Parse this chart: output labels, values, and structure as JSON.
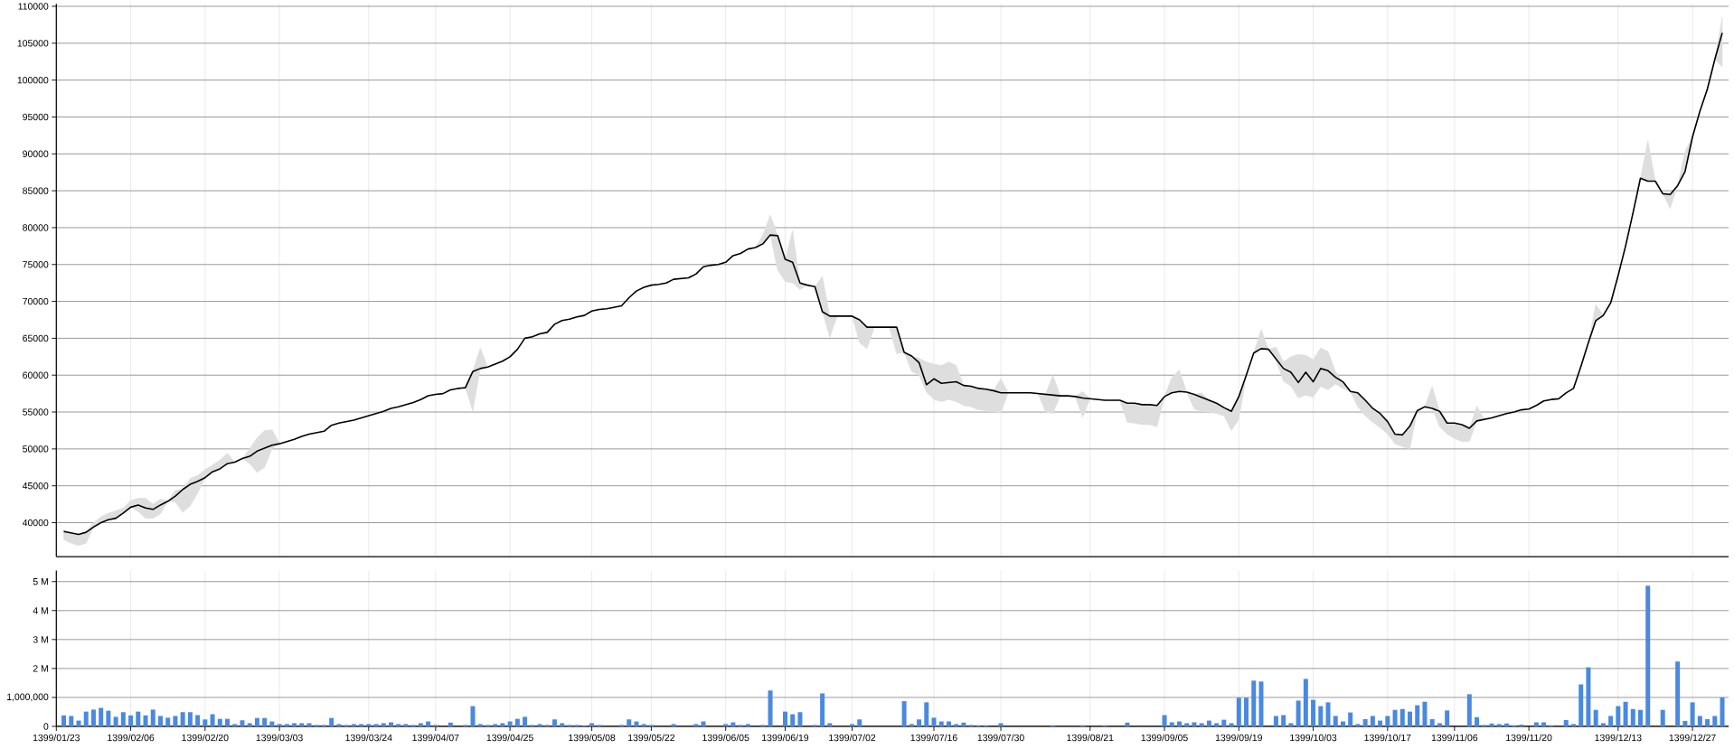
{
  "chart_data": [
    {
      "type": "line",
      "categories": [
        "1399/01/23",
        null,
        null,
        null,
        null,
        null,
        null,
        null,
        null,
        null,
        "1399/02/06",
        null,
        null,
        null,
        null,
        null,
        null,
        null,
        null,
        null,
        "1399/02/20",
        null,
        null,
        null,
        null,
        null,
        null,
        null,
        null,
        null,
        "1399/03/03",
        null,
        null,
        null,
        null,
        null,
        null,
        null,
        null,
        null,
        null,
        null,
        "1399/03/24",
        null,
        null,
        null,
        null,
        null,
        null,
        null,
        null,
        "1399/04/07",
        null,
        null,
        null,
        null,
        null,
        null,
        null,
        null,
        null,
        "1399/04/25",
        null,
        null,
        null,
        null,
        null,
        null,
        null,
        null,
        null,
        null,
        "1399/05/08",
        null,
        null,
        null,
        null,
        null,
        null,
        null,
        "1399/05/22",
        null,
        null,
        null,
        null,
        null,
        null,
        null,
        null,
        null,
        "1399/06/05",
        null,
        null,
        null,
        null,
        null,
        null,
        null,
        "1399/06/19",
        null,
        null,
        null,
        null,
        null,
        null,
        null,
        null,
        "1399/07/02",
        null,
        null,
        null,
        null,
        null,
        null,
        null,
        null,
        null,
        null,
        "1399/07/16",
        null,
        null,
        null,
        null,
        null,
        null,
        null,
        null,
        "1399/07/30",
        null,
        null,
        null,
        null,
        null,
        null,
        null,
        null,
        null,
        null,
        null,
        "1399/08/21",
        null,
        null,
        null,
        null,
        null,
        null,
        null,
        null,
        null,
        "1399/09/05",
        null,
        null,
        null,
        null,
        null,
        null,
        null,
        null,
        null,
        "1399/09/19",
        null,
        null,
        null,
        null,
        null,
        null,
        null,
        null,
        null,
        "1399/10/03",
        null,
        null,
        null,
        null,
        null,
        null,
        null,
        null,
        null,
        "1399/10/17",
        null,
        null,
        null,
        null,
        null,
        null,
        null,
        null,
        "1399/11/06",
        null,
        null,
        null,
        null,
        null,
        null,
        null,
        null,
        null,
        "1399/11/20",
        null,
        null,
        null,
        null,
        null,
        null,
        null,
        null,
        null,
        null,
        null,
        "1399/12/13",
        null,
        null,
        null,
        null,
        null,
        null,
        null,
        null,
        null,
        "1399/12/27",
        null,
        null,
        null,
        null
      ],
      "series": [
        {
          "color": "#000000",
          "values": [
            null,
            38800,
            38600,
            38400,
            38700,
            39400,
            40000,
            40400,
            40600,
            41300,
            42100,
            42400,
            42000,
            41800,
            42400,
            42900,
            43600,
            44500,
            45200,
            45600,
            46100,
            46900,
            47300,
            48000,
            48200,
            48700,
            49000,
            49700,
            50100,
            50500,
            50700,
            51000,
            51300,
            51700,
            52000,
            52200,
            52400,
            53200,
            53500,
            53700,
            53900,
            54200,
            54500,
            54800,
            55100,
            55500,
            55700,
            56000,
            56300,
            56700,
            57200,
            57400,
            57500,
            58000,
            58200,
            58300,
            60500,
            60900,
            61100,
            61500,
            61900,
            62500,
            63500,
            65000,
            65200,
            65600,
            65800,
            66900,
            67400,
            67600,
            67900,
            68100,
            68700,
            68900,
            69000,
            69200,
            69400,
            70500,
            71400,
            71900,
            72200,
            72300,
            72500,
            73000,
            73100,
            73200,
            73700,
            74700,
            74900,
            75000,
            75300,
            76200,
            76500,
            77100,
            77300,
            77800,
            79000,
            78900,
            75700,
            75300,
            72500,
            72200,
            72000,
            68600,
            68000,
            68000,
            68000,
            68000,
            67500,
            66500,
            66500,
            66500,
            66500,
            66500,
            63100,
            62600,
            61700,
            58700,
            59500,
            58900,
            59000,
            59100,
            58600,
            58500,
            58200,
            58100,
            57900,
            57600,
            57600,
            57600,
            57600,
            57600,
            57500,
            57400,
            57300,
            57200,
            57200,
            57100,
            56900,
            56800,
            56700,
            56600,
            56600,
            56600,
            56200,
            56200,
            56000,
            56000,
            55900,
            57100,
            57600,
            57800,
            57700,
            57400,
            57000,
            56600,
            56200,
            55600,
            55100,
            57100,
            60000,
            63000,
            63600,
            63500,
            62200,
            60900,
            60400,
            59000,
            60400,
            59100,
            60900,
            60600,
            59700,
            59100,
            57800,
            57600,
            56600,
            55500,
            54800,
            53700,
            52000,
            51900,
            53100,
            55200,
            55700,
            55500,
            55100,
            53500,
            53500,
            53300,
            52800,
            53800,
            54000,
            54200,
            54500,
            54800,
            55000,
            55300,
            55400,
            55900,
            56500,
            56700,
            56800,
            57600,
            58200,
            61200,
            64400,
            67400,
            68100,
            69800,
            73500,
            77500,
            82000,
            86700,
            86300,
            86300,
            84600,
            84500,
            85700,
            87600,
            92300,
            95800,
            98800,
            102800,
            106400
          ],
          "lower": [
            null,
            37700,
            37200,
            36900,
            37200,
            39400,
            40000,
            40400,
            40600,
            41300,
            42100,
            41500,
            40600,
            40600,
            41200,
            42900,
            42800,
            41400,
            42300,
            44000,
            46100,
            46900,
            47300,
            48000,
            48200,
            48700,
            48000,
            46800,
            47500,
            50000,
            50700,
            51000,
            51300,
            51700,
            52000,
            52200,
            52400,
            53200,
            53500,
            53700,
            53900,
            54200,
            54500,
            54800,
            55100,
            55500,
            55700,
            56000,
            56300,
            56700,
            57200,
            57400,
            57500,
            58000,
            58200,
            58300,
            55100,
            60900,
            61100,
            61500,
            61900,
            62500,
            63500,
            65000,
            65200,
            65600,
            65800,
            66900,
            67400,
            67600,
            67900,
            68100,
            68700,
            68900,
            69000,
            69200,
            69400,
            70500,
            71400,
            71900,
            72200,
            72300,
            72500,
            73000,
            73100,
            73200,
            73700,
            74700,
            74900,
            75000,
            75300,
            76200,
            76500,
            77100,
            77300,
            77800,
            79000,
            74200,
            72700,
            72500,
            71600,
            72200,
            72000,
            68600,
            65100,
            68000,
            68000,
            68000,
            64400,
            63600,
            66500,
            66500,
            66500,
            62900,
            63100,
            60500,
            60000,
            57700,
            56700,
            56400,
            56700,
            56400,
            55900,
            55700,
            55300,
            55200,
            55000,
            54900,
            57600,
            57600,
            57600,
            57600,
            57500,
            55000,
            54800,
            57200,
            57200,
            57100,
            54300,
            56800,
            56700,
            56600,
            56600,
            56600,
            53600,
            53500,
            53300,
            53300,
            53000,
            57100,
            57600,
            57800,
            57700,
            55400,
            55100,
            55000,
            54800,
            54500,
            52500,
            54000,
            60000,
            63000,
            63600,
            63500,
            62000,
            59200,
            58500,
            56900,
            57300,
            57000,
            58500,
            58000,
            58800,
            58200,
            57800,
            55700,
            54500,
            53600,
            52900,
            52000,
            50700,
            50300,
            50000,
            55200,
            55700,
            55500,
            53000,
            52000,
            51400,
            51000,
            51000,
            53800,
            54000,
            54200,
            54500,
            54800,
            55000,
            55300,
            55400,
            55900,
            56500,
            56700,
            56800,
            57600,
            58200,
            61200,
            64400,
            67400,
            68100,
            69800,
            73500,
            77500,
            82000,
            86700,
            86300,
            86300,
            84600,
            82600,
            85700,
            87600,
            92300,
            95800,
            98800,
            102800,
            101800
          ],
          "upper": [
            null,
            39100,
            38600,
            38400,
            38700,
            40000,
            40800,
            41300,
            41600,
            42000,
            43000,
            43300,
            43300,
            42500,
            43200,
            42900,
            44400,
            44500,
            46000,
            46400,
            47200,
            47800,
            48500,
            49400,
            48200,
            48700,
            50000,
            51500,
            52500,
            52600,
            50700,
            51000,
            51300,
            51700,
            52000,
            52200,
            52400,
            53200,
            53500,
            53700,
            53900,
            54200,
            54500,
            54800,
            55100,
            55500,
            55700,
            56000,
            56300,
            56700,
            57200,
            57400,
            57500,
            58000,
            58200,
            58300,
            60500,
            63700,
            61100,
            61500,
            61900,
            62500,
            63500,
            65000,
            65200,
            65600,
            65800,
            66900,
            67400,
            67600,
            67900,
            68100,
            68700,
            68900,
            69000,
            69200,
            69400,
            70500,
            71400,
            71900,
            72200,
            72300,
            72500,
            73000,
            73100,
            73200,
            73700,
            74700,
            74900,
            75000,
            75300,
            76200,
            76500,
            77100,
            77300,
            79000,
            81700,
            78900,
            75700,
            79600,
            72500,
            72200,
            72000,
            73400,
            68000,
            68000,
            68000,
            68000,
            67500,
            66500,
            66500,
            66500,
            66500,
            66500,
            63100,
            62600,
            62300,
            61800,
            61500,
            61300,
            61800,
            61300,
            58600,
            58500,
            58200,
            58100,
            57900,
            59500,
            57600,
            57600,
            57600,
            57600,
            57500,
            57400,
            60000,
            57200,
            57200,
            57100,
            57800,
            56800,
            56700,
            56600,
            56600,
            56600,
            56200,
            56200,
            56000,
            56000,
            55900,
            57100,
            59700,
            60700,
            57700,
            57400,
            57600,
            56600,
            56200,
            55600,
            55100,
            57100,
            60000,
            63000,
            66200,
            63500,
            63800,
            61800,
            62500,
            62800,
            62700,
            62100,
            63700,
            63200,
            60500,
            59100,
            57800,
            57600,
            56600,
            55500,
            54800,
            53700,
            52000,
            51900,
            53100,
            55200,
            55700,
            58500,
            55100,
            53500,
            53500,
            53300,
            52800,
            55800,
            54000,
            54200,
            54500,
            54800,
            55000,
            55300,
            55400,
            55900,
            56500,
            56700,
            56800,
            57600,
            58200,
            61200,
            64400,
            69600,
            68100,
            69800,
            73500,
            77500,
            82000,
            86700,
            91800,
            86300,
            84600,
            84500,
            85700,
            90300,
            92300,
            95800,
            98800,
            102800,
            108500
          ]
        }
      ],
      "ylim": [
        35400,
        110350
      ],
      "yticks": [
        40000,
        45000,
        50000,
        55000,
        60000,
        65000,
        70000,
        75000,
        80000,
        85000,
        90000,
        95000,
        100000,
        105000,
        110000
      ],
      "grid": true,
      "tick_labels": "y"
    },
    {
      "type": "bar",
      "categories": [
        "1399/01/23",
        null,
        null,
        null,
        null,
        null,
        null,
        null,
        null,
        null,
        "1399/02/06",
        null,
        null,
        null,
        null,
        null,
        null,
        null,
        null,
        null,
        "1399/02/20",
        null,
        null,
        null,
        null,
        null,
        null,
        null,
        null,
        null,
        "1399/03/03",
        null,
        null,
        null,
        null,
        null,
        null,
        null,
        null,
        null,
        null,
        null,
        "1399/03/24",
        null,
        null,
        null,
        null,
        null,
        null,
        null,
        null,
        "1399/04/07",
        null,
        null,
        null,
        null,
        null,
        null,
        null,
        null,
        null,
        "1399/04/25",
        null,
        null,
        null,
        null,
        null,
        null,
        null,
        null,
        null,
        null,
        "1399/05/08",
        null,
        null,
        null,
        null,
        null,
        null,
        null,
        "1399/05/22",
        null,
        null,
        null,
        null,
        null,
        null,
        null,
        null,
        null,
        "1399/06/05",
        null,
        null,
        null,
        null,
        null,
        null,
        null,
        "1399/06/19",
        null,
        null,
        null,
        null,
        null,
        null,
        null,
        null,
        "1399/07/02",
        null,
        null,
        null,
        null,
        null,
        null,
        null,
        null,
        null,
        null,
        "1399/07/16",
        null,
        null,
        null,
        null,
        null,
        null,
        null,
        null,
        "1399/07/30",
        null,
        null,
        null,
        null,
        null,
        null,
        null,
        null,
        null,
        null,
        null,
        "1399/08/21",
        null,
        null,
        null,
        null,
        null,
        null,
        null,
        null,
        null,
        "1399/09/05",
        null,
        null,
        null,
        null,
        null,
        null,
        null,
        null,
        null,
        "1399/09/19",
        null,
        null,
        null,
        null,
        null,
        null,
        null,
        null,
        null,
        "1399/10/03",
        null,
        null,
        null,
        null,
        null,
        null,
        null,
        null,
        null,
        "1399/10/17",
        null,
        null,
        null,
        null,
        null,
        null,
        null,
        null,
        "1399/11/06",
        null,
        null,
        null,
        null,
        null,
        null,
        null,
        null,
        null,
        "1399/11/20",
        null,
        null,
        null,
        null,
        null,
        null,
        null,
        null,
        null,
        null,
        null,
        "1399/12/13",
        null,
        null,
        null,
        null,
        null,
        null,
        null,
        null,
        null,
        "1399/12/27",
        null,
        null,
        null,
        null
      ],
      "values": [
        null,
        380000,
        360000,
        200000,
        510000,
        580000,
        640000,
        540000,
        330000,
        490000,
        380000,
        510000,
        380000,
        580000,
        360000,
        300000,
        360000,
        490000,
        490000,
        390000,
        240000,
        420000,
        260000,
        260000,
        80000,
        210000,
        110000,
        290000,
        290000,
        170000,
        80000,
        80000,
        110000,
        110000,
        110000,
        50000,
        50000,
        290000,
        80000,
        50000,
        80000,
        80000,
        80000,
        80000,
        110000,
        140000,
        80000,
        80000,
        50000,
        110000,
        170000,
        50000,
        null,
        130000,
        null,
        50000,
        700000,
        80000,
        50000,
        80000,
        110000,
        170000,
        260000,
        330000,
        50000,
        80000,
        50000,
        240000,
        110000,
        50000,
        50000,
        20000,
        110000,
        50000,
        null,
        null,
        50000,
        240000,
        170000,
        80000,
        50000,
        null,
        null,
        80000,
        null,
        null,
        80000,
        170000,
        null,
        null,
        80000,
        140000,
        50000,
        80000,
        null,
        50000,
        1240000,
        null,
        510000,
        420000,
        490000,
        null,
        50000,
        1140000,
        110000,
        null,
        null,
        80000,
        240000,
        null,
        null,
        null,
        null,
        null,
        870000,
        80000,
        240000,
        830000,
        300000,
        170000,
        170000,
        80000,
        130000,
        50000,
        40000,
        40000,
        null,
        110000,
        null,
        null,
        null,
        null,
        null,
        null,
        40000,
        null,
        null,
        null,
        40000,
        null,
        null,
        40000,
        null,
        null,
        130000,
        null,
        null,
        null,
        null,
        390000,
        140000,
        170000,
        110000,
        140000,
        110000,
        200000,
        110000,
        230000,
        110000,
        990000,
        990000,
        1580000,
        1550000,
        null,
        360000,
        390000,
        110000,
        890000,
        1640000,
        920000,
        700000,
        830000,
        360000,
        170000,
        480000,
        80000,
        250000,
        360000,
        200000,
        360000,
        570000,
        600000,
        510000,
        730000,
        850000,
        250000,
        110000,
        550000,
        null,
        null,
        1110000,
        320000,
        50000,
        100000,
        80000,
        100000,
        40000,
        60000,
        null,
        140000,
        140000,
        40000,
        null,
        220000,
        80000,
        1450000,
        2040000,
        570000,
        110000,
        360000,
        700000,
        850000,
        600000,
        570000,
        4860000,
        null,
        570000,
        null,
        2240000,
        190000,
        830000,
        360000,
        250000,
        360000,
        1000000
      ],
      "color": "#4a89e0",
      "ylim": [
        0,
        5380000
      ],
      "yticks": [
        0,
        {
          "value": 1000000,
          "label": "1,000,000"
        },
        {
          "value": 2000000,
          "label": "2 M"
        },
        {
          "value": 3000000,
          "label": "3 M"
        },
        {
          "value": 4000000,
          "label": "4 M"
        },
        {
          "value": 5000000,
          "label": "5 M"
        }
      ],
      "grid": true
    }
  ]
}
